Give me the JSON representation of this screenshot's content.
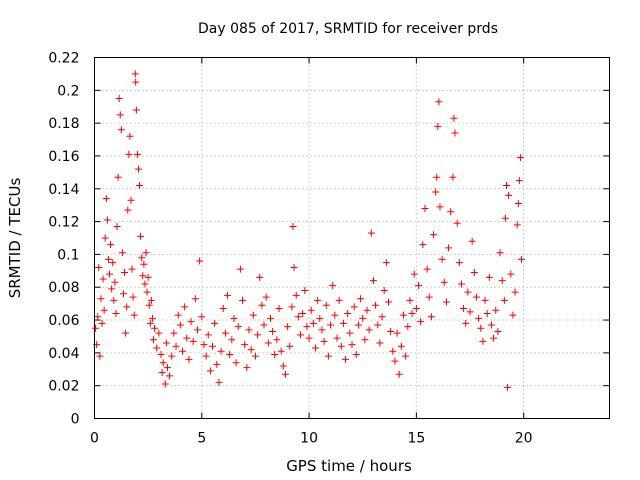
{
  "chart_data": {
    "type": "scatter",
    "title": "Day 085 of 2017, SRMTID for receiver prds",
    "xlabel": "GPS time / hours",
    "ylabel": "SRMTID / TECUs",
    "xlim": [
      0,
      24
    ],
    "ylim": [
      0,
      0.22
    ],
    "xticks": [
      0,
      5,
      10,
      15,
      20
    ],
    "xtick_labels": [
      "0",
      "5",
      "10",
      "15",
      "20"
    ],
    "yticks": [
      0,
      0.02,
      0.04,
      0.06,
      0.08,
      0.1,
      0.12,
      0.14,
      0.16,
      0.18,
      0.2,
      0.22
    ],
    "ytick_labels": [
      "0",
      "0.02",
      "0.04",
      "0.06",
      "0.08",
      "0.1",
      "0.12",
      "0.14",
      "0.16",
      "0.18",
      "0.2",
      "0.22"
    ],
    "grid": true,
    "marker": "+",
    "marker_color": "#ff0000",
    "series": [
      {
        "name": "SRMTID",
        "points": [
          [
            0.05,
            0.055
          ],
          [
            0.1,
            0.045
          ],
          [
            0.15,
            0.062
          ],
          [
            0.2,
            0.092
          ],
          [
            0.25,
            0.038
          ],
          [
            0.3,
            0.073
          ],
          [
            0.35,
            0.058
          ],
          [
            0.4,
            0.085
          ],
          [
            0.45,
            0.066
          ],
          [
            0.5,
            0.11
          ],
          [
            0.55,
            0.134
          ],
          [
            0.6,
            0.121
          ],
          [
            0.65,
            0.097
          ],
          [
            0.7,
            0.088
          ],
          [
            0.75,
            0.106
          ],
          [
            0.8,
            0.079
          ],
          [
            0.85,
            0.095
          ],
          [
            0.9,
            0.072
          ],
          [
            0.95,
            0.083
          ],
          [
            1.0,
            0.064
          ],
          [
            1.05,
            0.117
          ],
          [
            1.1,
            0.147
          ],
          [
            1.15,
            0.195
          ],
          [
            1.2,
            0.185
          ],
          [
            1.25,
            0.176
          ],
          [
            1.3,
            0.101
          ],
          [
            1.35,
            0.076
          ],
          [
            1.4,
            0.089
          ],
          [
            1.45,
            0.052
          ],
          [
            1.5,
            0.068
          ],
          [
            1.55,
            0.127
          ],
          [
            1.6,
            0.161
          ],
          [
            1.65,
            0.172
          ],
          [
            1.7,
            0.133
          ],
          [
            1.75,
            0.091
          ],
          [
            1.8,
            0.074
          ],
          [
            1.85,
            0.063
          ],
          [
            1.9,
            0.21
          ],
          [
            1.92,
            0.205
          ],
          [
            1.95,
            0.188
          ],
          [
            2.0,
            0.161
          ],
          [
            2.05,
            0.152
          ],
          [
            2.1,
            0.142
          ],
          [
            2.15,
            0.111
          ],
          [
            2.2,
            0.098
          ],
          [
            2.25,
            0.087
          ],
          [
            2.3,
            0.094
          ],
          [
            2.35,
            0.082
          ],
          [
            2.4,
            0.101
          ],
          [
            2.45,
            0.077
          ],
          [
            2.5,
            0.086
          ],
          [
            2.55,
            0.069
          ],
          [
            2.6,
            0.058
          ],
          [
            2.65,
            0.072
          ],
          [
            2.7,
            0.061
          ],
          [
            2.75,
            0.048
          ],
          [
            2.8,
            0.055
          ],
          [
            2.9,
            0.043
          ],
          [
            3.0,
            0.052
          ],
          [
            3.1,
            0.039
          ],
          [
            3.15,
            0.028
          ],
          [
            3.2,
            0.034
          ],
          [
            3.3,
            0.021
          ],
          [
            3.35,
            0.046
          ],
          [
            3.4,
            0.031
          ],
          [
            3.5,
            0.026
          ],
          [
            3.6,
            0.038
          ],
          [
            3.7,
            0.052
          ],
          [
            3.8,
            0.044
          ],
          [
            3.9,
            0.063
          ],
          [
            4.0,
            0.057
          ],
          [
            4.1,
            0.041
          ],
          [
            4.2,
            0.068
          ],
          [
            4.3,
            0.049
          ],
          [
            4.4,
            0.036
          ],
          [
            4.5,
            0.059
          ],
          [
            4.6,
            0.047
          ],
          [
            4.7,
            0.073
          ],
          [
            4.8,
            0.054
          ],
          [
            4.9,
            0.096
          ],
          [
            5.0,
            0.062
          ],
          [
            5.1,
            0.045
          ],
          [
            5.2,
            0.038
          ],
          [
            5.3,
            0.051
          ],
          [
            5.4,
            0.029
          ],
          [
            5.5,
            0.044
          ],
          [
            5.6,
            0.058
          ],
          [
            5.7,
            0.033
          ],
          [
            5.8,
            0.022
          ],
          [
            5.9,
            0.041
          ],
          [
            6.0,
            0.067
          ],
          [
            6.1,
            0.052
          ],
          [
            6.2,
            0.075
          ],
          [
            6.3,
            0.039
          ],
          [
            6.4,
            0.048
          ],
          [
            6.5,
            0.061
          ],
          [
            6.6,
            0.034
          ],
          [
            6.7,
            0.056
          ],
          [
            6.8,
            0.091
          ],
          [
            6.9,
            0.072
          ],
          [
            7.0,
            0.045
          ],
          [
            7.1,
            0.031
          ],
          [
            7.2,
            0.054
          ],
          [
            7.3,
            0.042
          ],
          [
            7.4,
            0.063
          ],
          [
            7.5,
            0.038
          ],
          [
            7.6,
            0.051
          ],
          [
            7.7,
            0.086
          ],
          [
            7.8,
            0.069
          ],
          [
            7.9,
            0.057
          ],
          [
            8.0,
            0.074
          ],
          [
            8.1,
            0.046
          ],
          [
            8.2,
            0.061
          ],
          [
            8.3,
            0.053
          ],
          [
            8.4,
            0.039
          ],
          [
            8.5,
            0.048
          ],
          [
            8.6,
            0.067
          ],
          [
            8.7,
            0.041
          ],
          [
            8.8,
            0.032
          ],
          [
            8.9,
            0.027
          ],
          [
            9.0,
            0.056
          ],
          [
            9.1,
            0.044
          ],
          [
            9.2,
            0.068
          ],
          [
            9.25,
            0.117
          ],
          [
            9.3,
            0.092
          ],
          [
            9.4,
            0.075
          ],
          [
            9.5,
            0.062
          ],
          [
            9.6,
            0.051
          ],
          [
            9.7,
            0.064
          ],
          [
            9.8,
            0.078
          ],
          [
            9.9,
            0.056
          ],
          [
            10.0,
            0.049
          ],
          [
            10.1,
            0.066
          ],
          [
            10.2,
            0.058
          ],
          [
            10.3,
            0.043
          ],
          [
            10.4,
            0.072
          ],
          [
            10.5,
            0.061
          ],
          [
            10.6,
            0.054
          ],
          [
            10.7,
            0.047
          ],
          [
            10.8,
            0.069
          ],
          [
            10.9,
            0.038
          ],
          [
            11.0,
            0.057
          ],
          [
            11.1,
            0.081
          ],
          [
            11.2,
            0.063
          ],
          [
            11.3,
            0.049
          ],
          [
            11.4,
            0.072
          ],
          [
            11.5,
            0.044
          ],
          [
            11.6,
            0.058
          ],
          [
            11.7,
            0.036
          ],
          [
            11.8,
            0.064
          ],
          [
            11.9,
            0.052
          ],
          [
            12.0,
            0.045
          ],
          [
            12.1,
            0.068
          ],
          [
            12.2,
            0.039
          ],
          [
            12.3,
            0.057
          ],
          [
            12.4,
            0.073
          ],
          [
            12.5,
            0.061
          ],
          [
            12.6,
            0.048
          ],
          [
            12.7,
            0.066
          ],
          [
            12.8,
            0.054
          ],
          [
            12.9,
            0.113
          ],
          [
            13.0,
            0.084
          ],
          [
            13.1,
            0.069
          ],
          [
            13.2,
            0.057
          ],
          [
            13.3,
            0.046
          ],
          [
            13.4,
            0.062
          ],
          [
            13.5,
            0.078
          ],
          [
            13.6,
            0.095
          ],
          [
            13.7,
            0.071
          ],
          [
            13.8,
            0.053
          ],
          [
            13.9,
            0.041
          ],
          [
            14.0,
            0.035
          ],
          [
            14.1,
            0.052
          ],
          [
            14.2,
            0.027
          ],
          [
            14.3,
            0.044
          ],
          [
            14.4,
            0.063
          ],
          [
            14.5,
            0.038
          ],
          [
            14.6,
            0.056
          ],
          [
            14.7,
            0.072
          ],
          [
            14.8,
            0.064
          ],
          [
            14.9,
            0.088
          ],
          [
            15.0,
            0.067
          ],
          [
            15.1,
            0.081
          ],
          [
            15.2,
            0.059
          ],
          [
            15.3,
            0.106
          ],
          [
            15.4,
            0.128
          ],
          [
            15.5,
            0.091
          ],
          [
            15.6,
            0.074
          ],
          [
            15.7,
            0.062
          ],
          [
            15.8,
            0.112
          ],
          [
            15.9,
            0.138
          ],
          [
            15.95,
            0.147
          ],
          [
            16.0,
            0.178
          ],
          [
            16.05,
            0.193
          ],
          [
            16.1,
            0.129
          ],
          [
            16.2,
            0.097
          ],
          [
            16.3,
            0.083
          ],
          [
            16.4,
            0.071
          ],
          [
            16.5,
            0.104
          ],
          [
            16.6,
            0.126
          ],
          [
            16.7,
            0.147
          ],
          [
            16.75,
            0.183
          ],
          [
            16.8,
            0.174
          ],
          [
            16.9,
            0.119
          ],
          [
            17.0,
            0.095
          ],
          [
            17.1,
            0.082
          ],
          [
            17.2,
            0.067
          ],
          [
            17.3,
            0.058
          ],
          [
            17.4,
            0.077
          ],
          [
            17.5,
            0.065
          ],
          [
            17.6,
            0.108
          ],
          [
            17.7,
            0.089
          ],
          [
            17.8,
            0.074
          ],
          [
            17.9,
            0.061
          ],
          [
            18.0,
            0.055
          ],
          [
            18.1,
            0.047
          ],
          [
            18.2,
            0.072
          ],
          [
            18.3,
            0.064
          ],
          [
            18.4,
            0.086
          ],
          [
            18.5,
            0.057
          ],
          [
            18.6,
            0.049
          ],
          [
            18.7,
            0.066
          ],
          [
            18.8,
            0.053
          ],
          [
            18.9,
            0.101
          ],
          [
            19.0,
            0.084
          ],
          [
            19.1,
            0.072
          ],
          [
            19.15,
            0.122
          ],
          [
            19.2,
            0.142
          ],
          [
            19.25,
            0.019
          ],
          [
            19.3,
            0.136
          ],
          [
            19.4,
            0.088
          ],
          [
            19.5,
            0.063
          ],
          [
            19.6,
            0.077
          ],
          [
            19.7,
            0.118
          ],
          [
            19.75,
            0.131
          ],
          [
            19.8,
            0.145
          ],
          [
            19.85,
            0.159
          ],
          [
            19.9,
            0.097
          ]
        ]
      }
    ]
  }
}
